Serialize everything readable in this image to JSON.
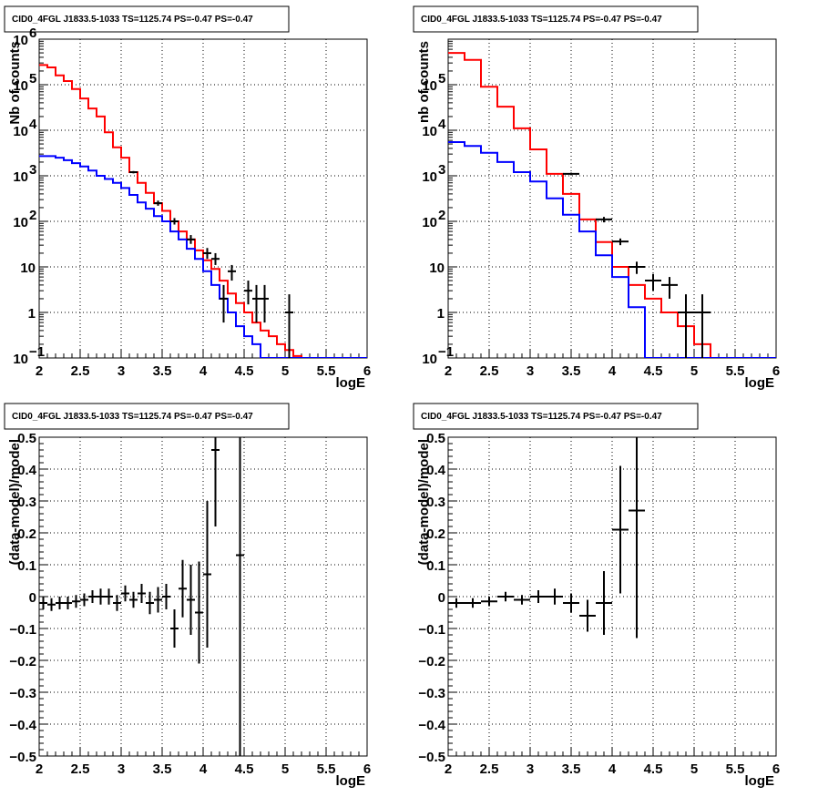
{
  "chart_data": [
    {
      "type": "line",
      "title": "CID0_4FGL J1833.5-1033 TS=1125.74 PS=-0.47 PS=-0.47",
      "xlabel": "logE",
      "ylabel": "Nb of counts",
      "xlim": [
        2,
        6
      ],
      "ylim": [
        0.1,
        1000000
      ],
      "y_scale": "log",
      "grid": true,
      "x_ticks": [
        "2",
        "2.5",
        "3",
        "3.5",
        "4",
        "4.5",
        "5",
        "5.5",
        "6"
      ],
      "y_ticks": [
        {
          "value": 0.1,
          "base": "10",
          "exp": "−1"
        },
        {
          "value": 1,
          "base": "1",
          "exp": ""
        },
        {
          "value": 10,
          "base": "10",
          "exp": ""
        },
        {
          "value": 100,
          "base": "10",
          "exp": "2"
        },
        {
          "value": 1000,
          "base": "10",
          "exp": "3"
        },
        {
          "value": 10000,
          "base": "10",
          "exp": "4"
        },
        {
          "value": 100000,
          "base": "10",
          "exp": "5"
        },
        {
          "value": 1000000,
          "base": "10",
          "exp": "6"
        }
      ],
      "bin_edges": [
        2.0,
        2.1,
        2.2,
        2.3,
        2.4,
        2.5,
        2.6,
        2.7,
        2.8,
        2.9,
        3.0,
        3.1,
        3.2,
        3.3,
        3.4,
        3.5,
        3.6,
        3.7,
        3.8,
        3.9,
        4.0,
        4.1,
        4.2,
        4.3,
        4.4,
        4.5,
        4.6,
        4.7,
        4.8,
        4.9,
        5.0,
        5.1,
        5.2,
        5.3,
        5.4,
        5.5,
        5.6,
        5.7,
        5.8,
        5.9,
        6.0
      ],
      "series": [
        {
          "color": "#ff0000",
          "kind": "step",
          "values": [
            270000,
            240000,
            160000,
            120000,
            80000,
            50000,
            30000,
            20000,
            9000,
            4200,
            2500,
            1200,
            700,
            420,
            250,
            170,
            100,
            60,
            40,
            23,
            14,
            9,
            5,
            2.6,
            1.6,
            1.0,
            0.6,
            0.4,
            0.3,
            0.2,
            0.15,
            0.11,
            0.1,
            0.1,
            0.1,
            0.1,
            0.1,
            0.1,
            0.1,
            0.1
          ]
        },
        {
          "color": "#0000ff",
          "kind": "step",
          "values": [
            2700,
            2700,
            2500,
            2200,
            1900,
            1600,
            1300,
            1000,
            850,
            700,
            540,
            380,
            260,
            190,
            130,
            100,
            60,
            40,
            25,
            15,
            8,
            4,
            2,
            1,
            0.5,
            0.3,
            0.2,
            0.1,
            0.1,
            0.1,
            0.1,
            0.1,
            0.1,
            0.1,
            0.1,
            0.1,
            0.1,
            0.1,
            0.1,
            0.1
          ]
        },
        {
          "color": "#000000",
          "kind": "errorbars",
          "points": [
            {
              "x": 3.15,
              "y": 1200,
              "ylo": 1130,
              "yhi": 1270
            },
            {
              "x": 3.45,
              "y": 250,
              "ylo": 220,
              "yhi": 285
            },
            {
              "x": 3.65,
              "y": 100,
              "ylo": 85,
              "yhi": 118
            },
            {
              "x": 3.85,
              "y": 40,
              "ylo": 32,
              "yhi": 50
            },
            {
              "x": 4.05,
              "y": 20,
              "ylo": 15,
              "yhi": 26
            },
            {
              "x": 4.15,
              "y": 15,
              "ylo": 11,
              "yhi": 20
            },
            {
              "x": 4.25,
              "y": 2,
              "ylo": 0.6,
              "yhi": 4
            },
            {
              "x": 4.35,
              "y": 8,
              "ylo": 5,
              "yhi": 11
            },
            {
              "x": 4.55,
              "y": 3,
              "ylo": 1.5,
              "yhi": 5
            },
            {
              "x": 4.65,
              "y": 2,
              "ylo": 0.6,
              "yhi": 4
            },
            {
              "x": 4.75,
              "y": 2,
              "ylo": 0.6,
              "yhi": 4
            },
            {
              "x": 5.05,
              "y": 1,
              "ylo": 0.1,
              "yhi": 2.5
            }
          ]
        }
      ]
    },
    {
      "type": "line",
      "title": "CID0_4FGL J1833.5-1033 TS=1125.74 PS=-0.47 PS=-0.47",
      "xlabel": "logE",
      "ylabel": "nb of counts",
      "xlim": [
        2,
        6
      ],
      "ylim": [
        0.1,
        1000000
      ],
      "y_scale": "log",
      "grid": true,
      "x_ticks": [
        "2",
        "2.5",
        "3",
        "3.5",
        "4",
        "4.5",
        "5",
        "5.5",
        "6"
      ],
      "y_ticks": [
        {
          "value": 0.1,
          "base": "10",
          "exp": "−1"
        },
        {
          "value": 1,
          "base": "1",
          "exp": ""
        },
        {
          "value": 10,
          "base": "10",
          "exp": ""
        },
        {
          "value": 100,
          "base": "10",
          "exp": "2"
        },
        {
          "value": 1000,
          "base": "10",
          "exp": "3"
        },
        {
          "value": 10000,
          "base": "10",
          "exp": "4"
        },
        {
          "value": 100000,
          "base": "10",
          "exp": "5"
        }
      ],
      "bin_edges": [
        2.0,
        2.2,
        2.4,
        2.6,
        2.8,
        3.0,
        3.2,
        3.4,
        3.6,
        3.8,
        4.0,
        4.2,
        4.4,
        4.6,
        4.8,
        5.0,
        5.2,
        5.4,
        5.6,
        5.8,
        6.0
      ],
      "series": [
        {
          "color": "#ff0000",
          "kind": "step",
          "values": [
            500000,
            350000,
            90000,
            33000,
            11000,
            3800,
            1100,
            400,
            110,
            35,
            10,
            4,
            2,
            1,
            0.5,
            0.2,
            0.1,
            0.1,
            0.1,
            0.1
          ]
        },
        {
          "color": "#0000ff",
          "kind": "step",
          "values": [
            5500,
            4500,
            3200,
            2000,
            1200,
            750,
            320,
            140,
            60,
            18,
            6,
            1.3,
            0.1,
            0.1,
            0.1,
            0.1,
            0.1,
            0.1,
            0.1,
            0.1
          ]
        },
        {
          "color": "#000000",
          "kind": "errorbars",
          "points": [
            {
              "x": 3.5,
              "y": 1100,
              "ylo": 1030,
              "yhi": 1170
            },
            {
              "x": 3.9,
              "y": 110,
              "ylo": 95,
              "yhi": 125
            },
            {
              "x": 4.1,
              "y": 36,
              "ylo": 30,
              "yhi": 42
            },
            {
              "x": 4.3,
              "y": 10,
              "ylo": 7,
              "yhi": 13
            },
            {
              "x": 4.5,
              "y": 5,
              "ylo": 3,
              "yhi": 7
            },
            {
              "x": 4.7,
              "y": 4,
              "ylo": 2,
              "yhi": 6
            },
            {
              "x": 4.9,
              "y": 1,
              "ylo": 0.1,
              "yhi": 2.5
            },
            {
              "x": 5.1,
              "y": 1,
              "ylo": 0.1,
              "yhi": 2.5
            }
          ]
        }
      ]
    },
    {
      "type": "scatter",
      "title": "CID0_4FGL J1833.5-1033 TS=1125.74 PS=-0.47 PS=-0.47",
      "xlabel": "logE",
      "ylabel": "(data-model)/model",
      "xlim": [
        2,
        6
      ],
      "ylim": [
        -0.5,
        0.5
      ],
      "y_scale": "linear",
      "grid": true,
      "x_ticks": [
        "2",
        "2.5",
        "3",
        "3.5",
        "4",
        "4.5",
        "5",
        "5.5",
        "6"
      ],
      "y_ticks": [
        "−0.5",
        "−0.4",
        "−0.3",
        "−0.2",
        "−0.1",
        "0",
        "0.1",
        "0.2",
        "0.3",
        "0.4",
        "0.5"
      ],
      "y_tick_values": [
        -0.5,
        -0.4,
        -0.3,
        -0.2,
        -0.1,
        0,
        0.1,
        0.2,
        0.3,
        0.4,
        0.5
      ],
      "points": [
        {
          "x": 2.05,
          "y": -0.02,
          "xerr": 0.05,
          "yerr": 0.02
        },
        {
          "x": 2.15,
          "y": -0.025,
          "xerr": 0.05,
          "yerr": 0.02
        },
        {
          "x": 2.25,
          "y": -0.02,
          "xerr": 0.05,
          "yerr": 0.02
        },
        {
          "x": 2.35,
          "y": -0.02,
          "xerr": 0.05,
          "yerr": 0.02
        },
        {
          "x": 2.45,
          "y": -0.015,
          "xerr": 0.05,
          "yerr": 0.02
        },
        {
          "x": 2.55,
          "y": -0.01,
          "xerr": 0.05,
          "yerr": 0.02
        },
        {
          "x": 2.65,
          "y": 0.0,
          "xerr": 0.05,
          "yerr": 0.02
        },
        {
          "x": 2.75,
          "y": 0.0,
          "xerr": 0.05,
          "yerr": 0.025
        },
        {
          "x": 2.85,
          "y": 0.0,
          "xerr": 0.05,
          "yerr": 0.025
        },
        {
          "x": 2.95,
          "y": -0.02,
          "xerr": 0.05,
          "yerr": 0.025
        },
        {
          "x": 3.05,
          "y": 0.01,
          "xerr": 0.05,
          "yerr": 0.025
        },
        {
          "x": 3.15,
          "y": -0.01,
          "xerr": 0.05,
          "yerr": 0.025
        },
        {
          "x": 3.25,
          "y": 0.01,
          "xerr": 0.05,
          "yerr": 0.03
        },
        {
          "x": 3.35,
          "y": -0.02,
          "xerr": 0.05,
          "yerr": 0.035
        },
        {
          "x": 3.45,
          "y": -0.01,
          "xerr": 0.05,
          "yerr": 0.04
        },
        {
          "x": 3.55,
          "y": 0.0,
          "xerr": 0.05,
          "yerr": 0.04
        },
        {
          "x": 3.65,
          "y": -0.1,
          "xerr": 0.05,
          "yerr": 0.06
        },
        {
          "x": 3.75,
          "y": 0.025,
          "xerr": 0.05,
          "yerr": 0.09
        },
        {
          "x": 3.85,
          "y": -0.01,
          "xerr": 0.05,
          "yerr": 0.11
        },
        {
          "x": 3.95,
          "y": -0.05,
          "xerr": 0.05,
          "yerr": 0.16
        },
        {
          "x": 4.05,
          "y": 0.07,
          "xerr": 0.05,
          "yerr": 0.23
        },
        {
          "x": 4.15,
          "y": 0.46,
          "xerr": 0.05,
          "yerr": 0.24
        },
        {
          "x": 4.45,
          "y": 0.13,
          "xerr": 0.05,
          "yerr": 0.7
        }
      ]
    },
    {
      "type": "scatter",
      "title": "CID0_4FGL J1833.5-1033 TS=1125.74 PS=-0.47 PS=-0.47",
      "xlabel": "logE",
      "ylabel": "(data-model)/model",
      "xlim": [
        2,
        6
      ],
      "ylim": [
        -0.5,
        0.5
      ],
      "y_scale": "linear",
      "grid": true,
      "x_ticks": [
        "2",
        "2.5",
        "3",
        "3.5",
        "4",
        "4.5",
        "5",
        "5.5",
        "6"
      ],
      "y_ticks": [
        "−0.5",
        "−0.4",
        "−0.3",
        "−0.2",
        "−0.1",
        "0",
        "0.1",
        "0.2",
        "0.3",
        "0.4",
        "0.5"
      ],
      "y_tick_values": [
        -0.5,
        -0.4,
        -0.3,
        -0.2,
        -0.1,
        0,
        0.1,
        0.2,
        0.3,
        0.4,
        0.5
      ],
      "points": [
        {
          "x": 2.1,
          "y": -0.02,
          "xerr": 0.1,
          "yerr": 0.015
        },
        {
          "x": 2.3,
          "y": -0.02,
          "xerr": 0.1,
          "yerr": 0.015
        },
        {
          "x": 2.5,
          "y": -0.015,
          "xerr": 0.1,
          "yerr": 0.015
        },
        {
          "x": 2.7,
          "y": 0.0,
          "xerr": 0.1,
          "yerr": 0.015
        },
        {
          "x": 2.9,
          "y": -0.01,
          "xerr": 0.1,
          "yerr": 0.015
        },
        {
          "x": 3.1,
          "y": 0.0,
          "xerr": 0.1,
          "yerr": 0.02
        },
        {
          "x": 3.3,
          "y": 0.0,
          "xerr": 0.1,
          "yerr": 0.025
        },
        {
          "x": 3.5,
          "y": -0.02,
          "xerr": 0.1,
          "yerr": 0.03
        },
        {
          "x": 3.7,
          "y": -0.06,
          "xerr": 0.1,
          "yerr": 0.05
        },
        {
          "x": 3.9,
          "y": -0.02,
          "xerr": 0.1,
          "yerr": 0.1
        },
        {
          "x": 4.1,
          "y": 0.21,
          "xerr": 0.1,
          "yerr": 0.2
        },
        {
          "x": 4.3,
          "y": 0.27,
          "xerr": 0.1,
          "yerr": 0.4
        }
      ]
    }
  ]
}
